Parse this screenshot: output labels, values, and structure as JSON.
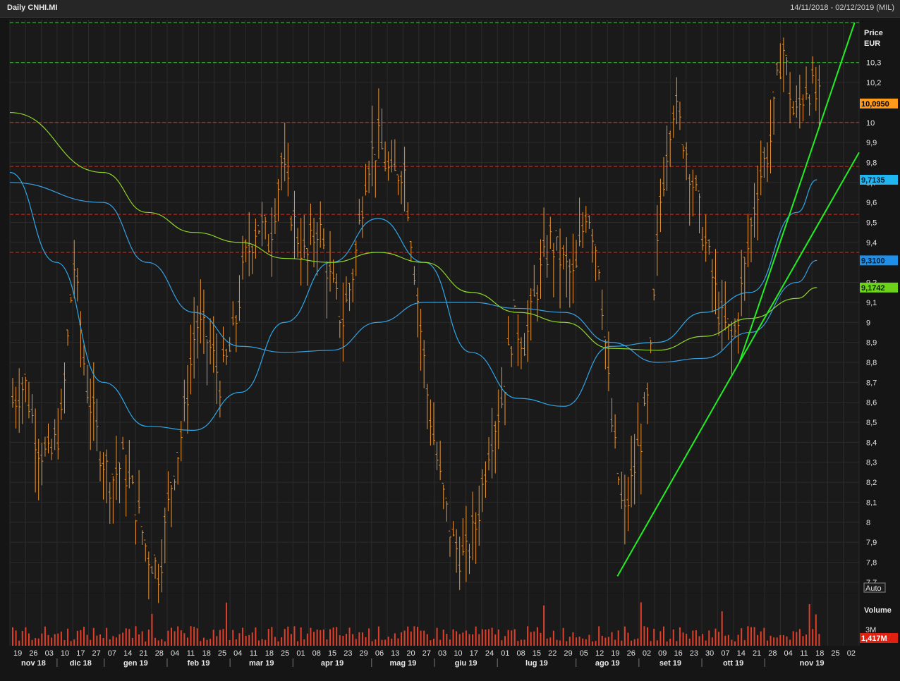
{
  "header": {
    "title": "Daily CNHI.MI",
    "date_range": "14/11/2018 - 02/12/2019 (MIL)"
  },
  "price_axis": {
    "label_line1": "Price",
    "label_line2": "EUR",
    "ticks": [
      "10,3",
      "10,2",
      "10",
      "9,9",
      "9,8",
      "9,7",
      "9,6",
      "9,5",
      "9,4",
      "9,2",
      "9,1",
      "9",
      "8,9",
      "8,8",
      "8,7",
      "8,6",
      "8,5",
      "8,4",
      "8,3",
      "8,2",
      "8,1",
      "8",
      "7,9",
      "7,8",
      "7,7"
    ],
    "auto_label": "Auto"
  },
  "volume_axis": {
    "label": "Volume",
    "tick": "3M",
    "last_value": "1,417M"
  },
  "tags": {
    "last_price": "10,0950",
    "ma_fast": "9,7135",
    "ma_mid": "9,3100",
    "ma_slow": "9,1742"
  },
  "colors": {
    "price": "#f0952e",
    "ma_fast": "#2ea7e8",
    "ma_mid": "#3a9fe0",
    "ma_slow": "#8fd62a",
    "support_red": "#d03020",
    "resist_green": "#33d033",
    "trend": "#22ee22",
    "volume": "#e0402a"
  },
  "x_axis": {
    "days": [
      "19",
      "26",
      "03",
      "10",
      "17",
      "27",
      "07",
      "14",
      "21",
      "28",
      "04",
      "11",
      "18",
      "25",
      "04",
      "11",
      "18",
      "25",
      "01",
      "08",
      "15",
      "23",
      "29",
      "06",
      "13",
      "20",
      "27",
      "03",
      "10",
      "17",
      "24",
      "01",
      "08",
      "15",
      "22",
      "29",
      "05",
      "12",
      "19",
      "26",
      "02",
      "09",
      "16",
      "23",
      "30",
      "07",
      "14",
      "21",
      "28",
      "04",
      "11",
      "18",
      "25",
      "02"
    ],
    "months": [
      "nov 18",
      "dic 18",
      "gen 19",
      "feb 19",
      "mar 19",
      "apr 19",
      "mag 19",
      "giu 19",
      "lug 19",
      "ago 19",
      "set 19",
      "ott 19",
      "nov 19"
    ]
  },
  "chart_data": {
    "type": "line",
    "series": [
      {
        "x": [
          "2018-11-14",
          "2018-12-05",
          "2018-12-26",
          "2019-01-15",
          "2019-02-05",
          "2019-02-26",
          "2019-03-18",
          "2019-04-08",
          "2019-04-29",
          "2019-05-20",
          "2019-06-10",
          "2019-07-01",
          "2019-07-22",
          "2019-08-12",
          "2019-09-02",
          "2019-09-23",
          "2019-10-14",
          "2019-11-04",
          "2019-11-13"
        ],
        "values": [
          9.75,
          9.3,
          8.7,
          8.48,
          8.46,
          8.65,
          9.0,
          9.3,
          9.52,
          9.3,
          8.85,
          8.62,
          8.58,
          8.88,
          8.9,
          9.05,
          9.15,
          9.55,
          9.7135
        ]
      },
      {
        "x": [
          "2018-11-14",
          "2018-12-26",
          "2019-01-15",
          "2019-02-05",
          "2019-02-26",
          "2019-03-18",
          "2019-04-08",
          "2019-04-29",
          "2019-05-20",
          "2019-06-10",
          "2019-07-01",
          "2019-07-22",
          "2019-08-12",
          "2019-09-02",
          "2019-09-23",
          "2019-10-14",
          "2019-11-04",
          "2019-11-13"
        ],
        "values": [
          9.7,
          9.6,
          9.3,
          9.05,
          8.88,
          8.85,
          8.86,
          9.0,
          9.1,
          9.1,
          9.07,
          9.05,
          8.9,
          8.8,
          8.82,
          8.95,
          9.2,
          9.31
        ]
      },
      {
        "x": [
          "2018-11-14",
          "2018-12-26",
          "2019-01-15",
          "2019-02-05",
          "2019-02-26",
          "2019-03-18",
          "2019-04-08",
          "2019-04-29",
          "2019-05-20",
          "2019-06-10",
          "2019-07-01",
          "2019-07-22",
          "2019-08-12",
          "2019-09-02",
          "2019-09-23",
          "2019-10-14",
          "2019-11-04",
          "2019-11-13"
        ],
        "values": [
          10.05,
          9.75,
          9.55,
          9.45,
          9.4,
          9.32,
          9.3,
          9.35,
          9.3,
          9.15,
          9.05,
          9.0,
          8.87,
          8.86,
          8.93,
          9.02,
          9.12,
          9.1742
        ]
      }
    ],
    "candles_close": [
      8.6,
      8.7,
      8.4,
      8.3,
      8.5,
      9.3,
      8.7,
      8.4,
      8.2,
      8.3,
      8.1,
      7.85,
      7.75,
      8.2,
      8.5,
      9.0,
      8.9,
      8.7,
      8.9,
      9.3,
      9.5,
      9.4,
      9.8,
      9.5,
      9.3,
      9.5,
      9.2,
      9.0,
      9.3,
      9.8,
      9.9,
      9.7,
      9.8,
      9.2,
      8.6,
      8.2,
      7.9,
      7.8,
      8.0,
      8.4,
      8.6,
      9.0,
      8.9,
      9.2,
      9.4,
      9.3,
      9.2,
      9.6,
      9.3,
      8.5,
      8.0,
      8.3,
      8.6,
      9.6,
      10.1,
      9.9,
      9.6,
      9.3,
      9.0,
      8.9,
      9.3,
      9.7,
      9.9,
      10.4,
      10.0,
      10.2,
      10.095
    ],
    "price_levels": {
      "resistance": [
        10.5,
        10.3
      ],
      "support": [
        10.0,
        9.78,
        9.54,
        9.35
      ]
    },
    "ylim": [
      7.65,
      10.5
    ],
    "last_price": 10.095
  }
}
